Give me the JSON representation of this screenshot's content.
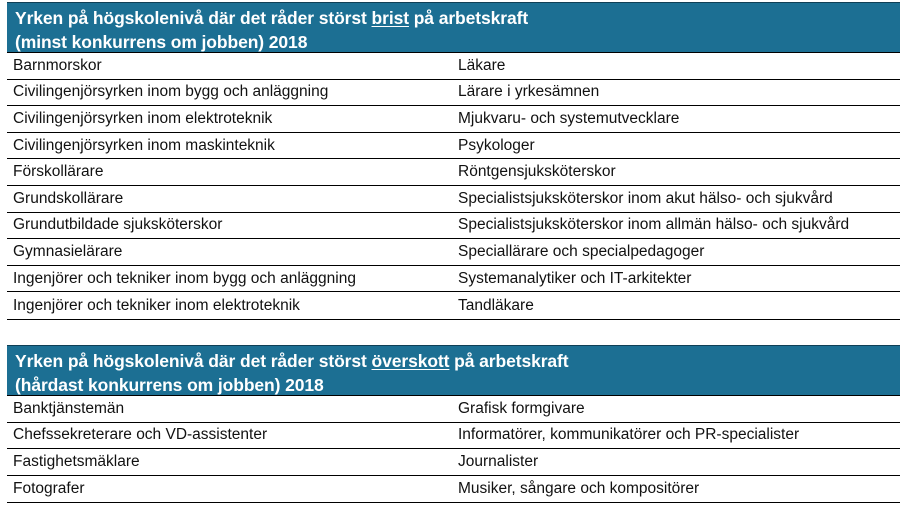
{
  "tables": [
    {
      "title_line1_pre": "Yrken på högskolenivå där det råder störst ",
      "title_line1_highlight": "brist",
      "title_line1_post": " på arbetskraft",
      "title_line2": "(minst konkurrens om jobben) 2018",
      "rows": [
        [
          "Barnmorskor",
          "Läkare"
        ],
        [
          "Civilingenjörsyrken inom bygg och anläggning",
          "Lärare i yrkesämnen"
        ],
        [
          "Civilingenjörsyrken inom elektroteknik",
          "Mjukvaru- och systemutvecklare"
        ],
        [
          "Civilingenjörsyrken inom maskinteknik",
          "Psykologer"
        ],
        [
          "Förskollärare",
          "Röntgensjuksköterskor"
        ],
        [
          "Grundskollärare",
          "Specialistsjuksköterskor inom akut hälso- och sjukvård"
        ],
        [
          "Grundutbildade sjuksköterskor",
          "Specialistsjuksköterskor inom allmän hälso- och sjukvård"
        ],
        [
          "Gymnasielärare",
          "Speciallärare och specialpedagoger"
        ],
        [
          "Ingenjörer och tekniker inom bygg och anläggning",
          "Systemanalytiker och IT-arkitekter"
        ],
        [
          "Ingenjörer och tekniker inom elektroteknik",
          "Tandläkare"
        ]
      ]
    },
    {
      "title_line1_pre": "Yrken på högskolenivå där det råder störst ",
      "title_line1_highlight": "överskott",
      "title_line1_post": " på arbetskraft",
      "title_line2": "(hårdast konkurrens om jobben) 2018",
      "rows": [
        [
          "Banktjänstemän",
          "Grafisk formgivare"
        ],
        [
          "Chefssekreterare och VD-assistenter",
          "Informatörer, kommunikatörer och PR-specialister"
        ],
        [
          "Fastighetsmäklare",
          "Journalister"
        ],
        [
          "Fotografer",
          "Musiker, sångare och kompositörer"
        ]
      ]
    }
  ],
  "colors": {
    "header_bg": "#1c6f93",
    "header_text": "#ffffff"
  }
}
